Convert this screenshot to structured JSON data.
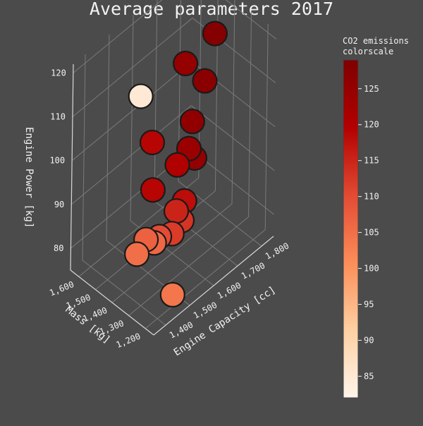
{
  "chart_data": {
    "type": "scatter3d",
    "title": "Average parameters 2017",
    "axes": {
      "x": {
        "label": "Engine Capacity [cc]",
        "range": [
          1350,
          1850
        ],
        "ticks": [
          "1,400",
          "1,500",
          "1,600",
          "1,700",
          "1,800"
        ],
        "tick_values": [
          1400,
          1500,
          1600,
          1700,
          1800
        ]
      },
      "y": {
        "label": "Mass [kg]",
        "range": [
          1150,
          1650
        ],
        "ticks": [
          "1,200",
          "1,300",
          "1,400",
          "1,500",
          "1,600"
        ],
        "tick_values": [
          1200,
          1300,
          1400,
          1500,
          1600
        ]
      },
      "z": {
        "label": "Engine Power [kg]",
        "range": [
          75,
          122
        ],
        "ticks": [
          "80",
          "90",
          "100",
          "110",
          "120"
        ],
        "tick_values": [
          80,
          90,
          100,
          110,
          120
        ]
      }
    },
    "colorbar": {
      "title_line1": "CO2 emissions",
      "title_line2": "colorscale",
      "range": [
        82,
        129
      ],
      "ticks": [
        "85",
        "90",
        "95",
        "100",
        "105",
        "110",
        "115",
        "120",
        "125"
      ],
      "tick_values": [
        85,
        90,
        95,
        100,
        105,
        110,
        115,
        120,
        125
      ],
      "colorscale": [
        "#fff5eb",
        "#fdd0a2",
        "#fc8d59",
        "#e34a33",
        "#b30000",
        "#7f0000"
      ]
    },
    "grid": true,
    "legend": "none",
    "points": [
      {
        "x": 1470,
        "y": 1210,
        "z": 77,
        "c": 104
      },
      {
        "x": 1480,
        "y": 1440,
        "z": 79,
        "c": 105
      },
      {
        "x": 1525,
        "y": 1450,
        "z": 80,
        "c": 107
      },
      {
        "x": 1560,
        "y": 1420,
        "z": 80,
        "c": 110
      },
      {
        "x": 1510,
        "y": 1380,
        "z": 82,
        "c": 106
      },
      {
        "x": 1570,
        "y": 1360,
        "z": 82,
        "c": 112
      },
      {
        "x": 1590,
        "y": 1330,
        "z": 85,
        "c": 113
      },
      {
        "x": 1580,
        "y": 1350,
        "z": 87,
        "c": 115
      },
      {
        "x": 1600,
        "y": 1330,
        "z": 89,
        "c": 118
      },
      {
        "x": 1530,
        "y": 1420,
        "z": 92,
        "c": 119
      },
      {
        "x": 1610,
        "y": 1390,
        "z": 95,
        "c": 120
      },
      {
        "x": 1640,
        "y": 1330,
        "z": 97,
        "c": 125
      },
      {
        "x": 1630,
        "y": 1350,
        "z": 99,
        "c": 124
      },
      {
        "x": 1560,
        "y": 1470,
        "z": 100,
        "c": 119
      },
      {
        "x": 1650,
        "y": 1360,
        "z": 104,
        "c": 126
      },
      {
        "x": 1530,
        "y": 1500,
        "z": 111,
        "c": 85
      },
      {
        "x": 1700,
        "y": 1360,
        "z": 111,
        "c": 127
      },
      {
        "x": 1660,
        "y": 1420,
        "z": 115,
        "c": 125
      },
      {
        "x": 1740,
        "y": 1360,
        "z": 120,
        "c": 128
      }
    ]
  }
}
